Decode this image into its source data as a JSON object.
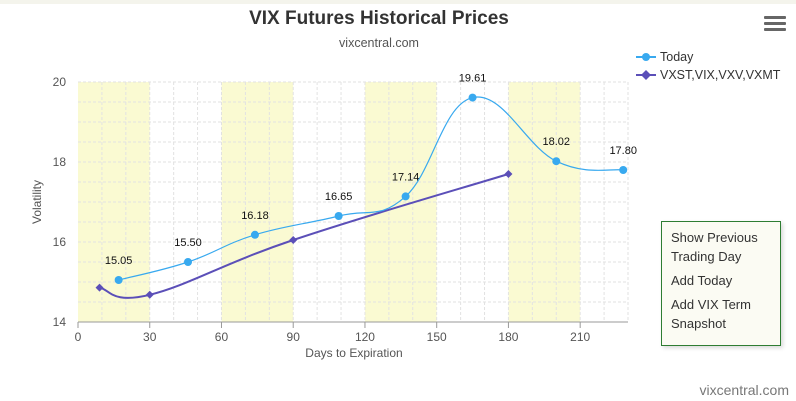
{
  "title": "VIX Futures Historical Prices",
  "subtitle": "vixcentral.com",
  "credit": "vixcentral.com",
  "menu_icon": "hamburger-menu-icon",
  "context_menu": {
    "items": [
      "Show Previous Trading Day",
      "Add Today",
      "Add VIX Term Snapshot"
    ]
  },
  "colors": {
    "today": "#38a9ef",
    "term": "#5b4fb8",
    "band": "#fafad2",
    "grid": "#e2e2e2"
  },
  "chart_data": {
    "type": "line",
    "xlabel": "Days to Expiration",
    "ylabel": "Volatility",
    "xlim": [
      0,
      230
    ],
    "ylim": [
      14,
      20
    ],
    "x_ticks": [
      0,
      30,
      60,
      90,
      120,
      150,
      180,
      210
    ],
    "y_ticks": [
      14,
      16,
      18,
      20
    ],
    "shaded_bands": [
      [
        0,
        30
      ],
      [
        60,
        90
      ],
      [
        120,
        150
      ],
      [
        180,
        210
      ]
    ],
    "legend_position": "top-right",
    "series": [
      {
        "name": "Today",
        "marker": "circle",
        "x": [
          17,
          46,
          74,
          109,
          137,
          165,
          200,
          228
        ],
        "y": [
          15.05,
          15.5,
          16.18,
          16.65,
          17.14,
          19.61,
          18.02,
          17.8
        ],
        "labels": [
          "15.05",
          "15.50",
          "16.18",
          "16.65",
          "17.14",
          "19.61",
          "18.02",
          "17.80"
        ]
      },
      {
        "name": "VXST,VIX,VXV,VXMT",
        "marker": "diamond",
        "x": [
          9,
          30,
          90,
          180
        ],
        "y": [
          14.86,
          14.68,
          16.05,
          17.7
        ]
      }
    ]
  }
}
